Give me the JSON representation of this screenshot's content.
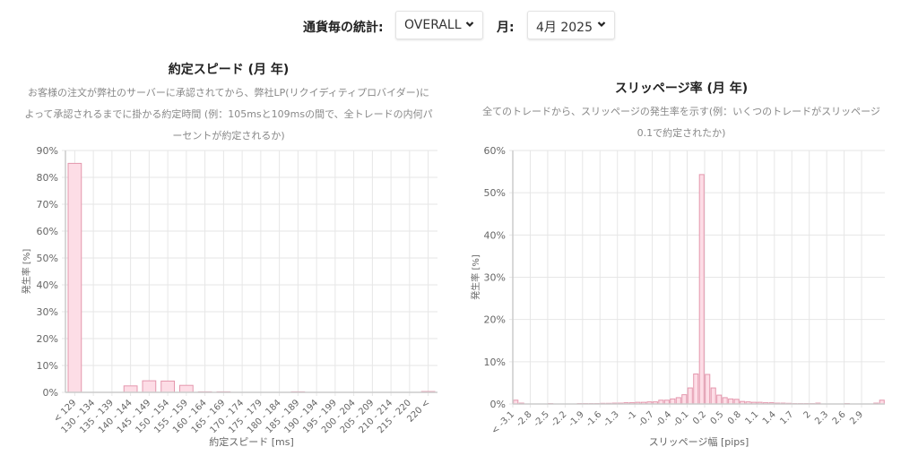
{
  "filters": {
    "currency_label": "通貨毎の統計:",
    "currency_value": "OVERALL",
    "month_label": "月:",
    "month_value": "4月 2025"
  },
  "colors": {
    "bar_fill": "#fddde6",
    "bar_stroke": "#e497ad",
    "grid": "#e6e6e6",
    "axis": "#cccccc",
    "tick_text": "#666666"
  },
  "speed_panel": {
    "title": "約定スピード (月 年)",
    "description_lines": [
      "お客様の注文が弊社のサーバーに承認されてから、弊社LP(リクイディティプロバイダー)に",
      "よって承認されるまでに掛かる約定時間 (例：105msと109msの間で、全トレードの内何パ",
      "ーセントが約定されるか)"
    ]
  },
  "slippage_panel": {
    "title": "スリッページ率 (月 年)",
    "description_lines": [
      "全てのトレードから、スリッページの発生率を示す(例：いくつのトレードがスリッページ",
      "0.1で約定されたか)"
    ]
  },
  "chart_data": [
    {
      "type": "bar",
      "title": "約定スピード (月 年)",
      "xlabel": "約定スピード [ms]",
      "ylabel": "発生率 [%]",
      "ylim": [
        0,
        90
      ],
      "yticks": [
        "0%",
        "10%",
        "20%",
        "30%",
        "40%",
        "50%",
        "60%",
        "70%",
        "80%",
        "90%"
      ],
      "grid": true,
      "categories": [
        "< 129",
        "130 - 134",
        "135 - 139",
        "140 - 144",
        "145 - 149",
        "150 - 154",
        "155 - 159",
        "160 - 164",
        "165 - 169",
        "170 - 174",
        "175 - 179",
        "180 - 184",
        "185 - 189",
        "190 - 194",
        "195 - 199",
        "200 - 204",
        "205 - 209",
        "210 - 214",
        "215 - 220",
        "220 <"
      ],
      "values": [
        85.2,
        0,
        0,
        2.4,
        4.3,
        4.2,
        2.6,
        0.2,
        0.2,
        0,
        0,
        0,
        0.2,
        0,
        0,
        0,
        0,
        0,
        0,
        0.3
      ]
    },
    {
      "type": "bar",
      "title": "スリッページ率 (月 年)",
      "xlabel": "スリッページ幅 [pips]",
      "ylabel": "発生率 [%]",
      "ylim": [
        0,
        60
      ],
      "yticks": [
        "0%",
        "10%",
        "20%",
        "30%",
        "40%",
        "50%",
        "60%"
      ],
      "grid": true,
      "tick_labels": [
        "< -3.1",
        "-2.8",
        "-2.5",
        "-2.2",
        "-1.9",
        "-1.6",
        "-1.3",
        "-1",
        "-0.7",
        "-0.4",
        "-0.1",
        "0.2",
        "0.5",
        "0.8",
        "1.1",
        "1.4",
        "1.7",
        "2",
        "2.3",
        "2.6",
        "2.9"
      ],
      "x": [
        "< -3.1",
        -3.0,
        -2.9,
        -2.8,
        -2.7,
        -2.6,
        -2.5,
        -2.4,
        -2.3,
        -2.2,
        -2.1,
        -2.0,
        -1.9,
        -1.8,
        -1.7,
        -1.6,
        -1.5,
        -1.4,
        -1.3,
        -1.2,
        -1.1,
        -1.0,
        -0.9,
        -0.8,
        -0.7,
        -0.6,
        -0.5,
        -0.4,
        -0.3,
        -0.2,
        -0.1,
        0.0,
        0.1,
        0.2,
        0.3,
        0.4,
        0.5,
        0.6,
        0.7,
        0.8,
        0.9,
        1.0,
        1.1,
        1.2,
        1.3,
        1.4,
        1.5,
        1.6,
        1.7,
        1.8,
        1.9,
        2.0,
        2.1,
        2.2,
        2.3,
        2.4,
        2.5,
        2.6,
        2.7,
        2.8,
        2.9,
        3.0,
        3.1,
        "3.1 <"
      ],
      "values": [
        0.9,
        0.2,
        0,
        0,
        0,
        0,
        0.1,
        0,
        0,
        0,
        0,
        0.1,
        0.1,
        0.1,
        0.1,
        0.15,
        0.15,
        0.2,
        0.2,
        0.3,
        0.3,
        0.4,
        0.4,
        0.5,
        0.5,
        0.9,
        0.9,
        1.2,
        1.5,
        2.2,
        3.8,
        7.1,
        54.3,
        7.0,
        3.8,
        2.1,
        1.5,
        1.2,
        1.1,
        0.6,
        0.5,
        0.4,
        0.4,
        0.3,
        0.3,
        0.2,
        0.2,
        0.15,
        0.1,
        0.1,
        0.1,
        0.1,
        0.2,
        0,
        0,
        0,
        0,
        0.1,
        0,
        0,
        0,
        0,
        0.2,
        0.9
      ]
    }
  ]
}
